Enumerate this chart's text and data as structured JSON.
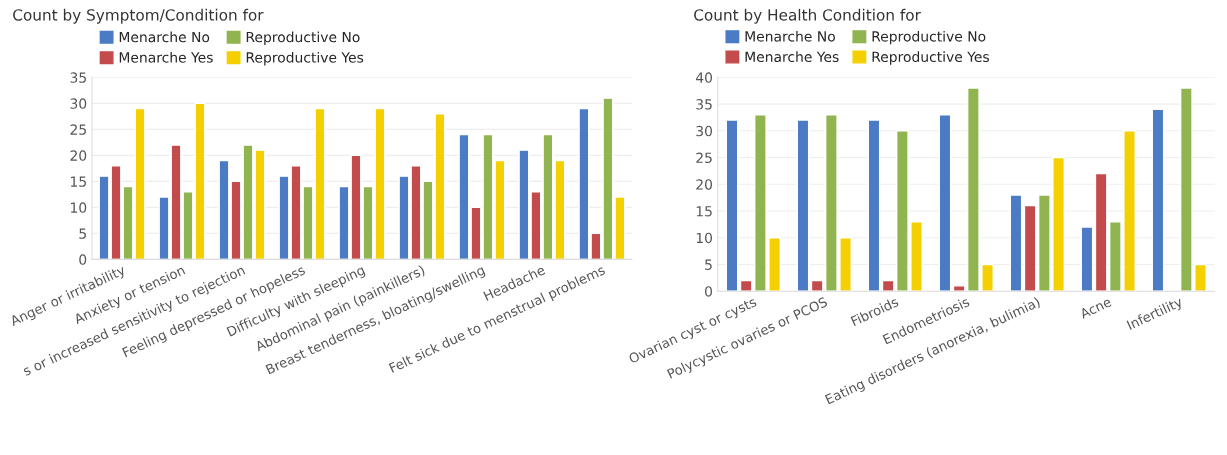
{
  "chart_data": [
    {
      "type": "bar",
      "title": "Count by Symptom/Condition for",
      "categories": [
        "Anger or irritability",
        "Anxiety or tension",
        "s or increased sensitivity to rejection",
        "Feeling depressed or hopeless",
        "Difficulty with sleeping",
        "Abdominal pain (painkillers)",
        "Breast tenderness, bloating/swelling",
        "Headache",
        "Felt sick due to menstrual problems"
      ],
      "series": [
        {
          "name": "Menarche No",
          "color": "#4a7bc4",
          "values": [
            16,
            12,
            19,
            16,
            14,
            16,
            24,
            21,
            29
          ]
        },
        {
          "name": "Menarche Yes",
          "color": "#c44b4b",
          "values": [
            18,
            22,
            15,
            18,
            20,
            18,
            10,
            13,
            5
          ]
        },
        {
          "name": "Reproductive No",
          "color": "#8fb450",
          "values": [
            14,
            13,
            22,
            14,
            14,
            15,
            24,
            24,
            31
          ]
        },
        {
          "name": "Reproductive Yes",
          "color": "#f5d000",
          "values": [
            29,
            30,
            21,
            29,
            29,
            28,
            19,
            19,
            12
          ]
        }
      ],
      "ylim": [
        0,
        35
      ],
      "yticks": [
        0,
        5,
        10,
        15,
        20,
        25,
        30,
        35
      ],
      "grid": "y",
      "legend": "top"
    },
    {
      "type": "bar",
      "title": "Count by Health Condition for",
      "categories": [
        "Ovarian cyst or cysts",
        "Polycystic ovaries or PCOS",
        "Fibroids",
        "Endometriosis",
        "Eating disorders (anorexia, bulimia)",
        "Acne",
        "Infertility"
      ],
      "series": [
        {
          "name": "Menarche No",
          "color": "#4a7bc4",
          "values": [
            32,
            32,
            32,
            33,
            18,
            12,
            34
          ]
        },
        {
          "name": "Menarche Yes",
          "color": "#c44b4b",
          "values": [
            2,
            2,
            2,
            1,
            16,
            22,
            null
          ]
        },
        {
          "name": "Reproductive No",
          "color": "#8fb450",
          "values": [
            33,
            33,
            30,
            38,
            18,
            13,
            38
          ]
        },
        {
          "name": "Reproductive Yes",
          "color": "#f5d000",
          "values": [
            10,
            10,
            13,
            5,
            25,
            30,
            5
          ]
        }
      ],
      "ylim": [
        0,
        40
      ],
      "yticks": [
        0,
        5,
        10,
        15,
        20,
        25,
        30,
        35,
        40
      ],
      "grid": "y",
      "legend": "top"
    }
  ]
}
